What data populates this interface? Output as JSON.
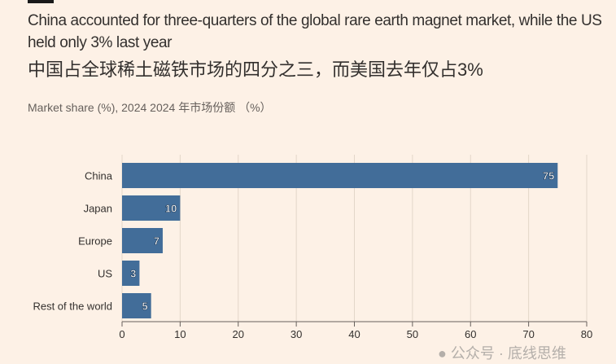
{
  "title_en": "China accounted for three-quarters of the global rare earth magnet market, while the US held only 3% last year",
  "title_zh": "中国占全球稀土磁铁市场的四分之三，而美国去年仅占3%",
  "subtitle": "Market share (%), 2024  2024 年市场份额 （%）",
  "watermark": "● 公众号 · 底线思维",
  "chart_data": {
    "type": "bar",
    "orientation": "horizontal",
    "categories": [
      "China",
      "Japan",
      "Europe",
      "US",
      "Rest of the world"
    ],
    "values": [
      75,
      10,
      7,
      3,
      5
    ],
    "xlim": [
      0,
      80
    ],
    "xticks": [
      0,
      10,
      20,
      30,
      40,
      50,
      60,
      70,
      80
    ],
    "xlabel": "",
    "ylabel": "",
    "grid": true,
    "bar_color": "#426d99"
  }
}
